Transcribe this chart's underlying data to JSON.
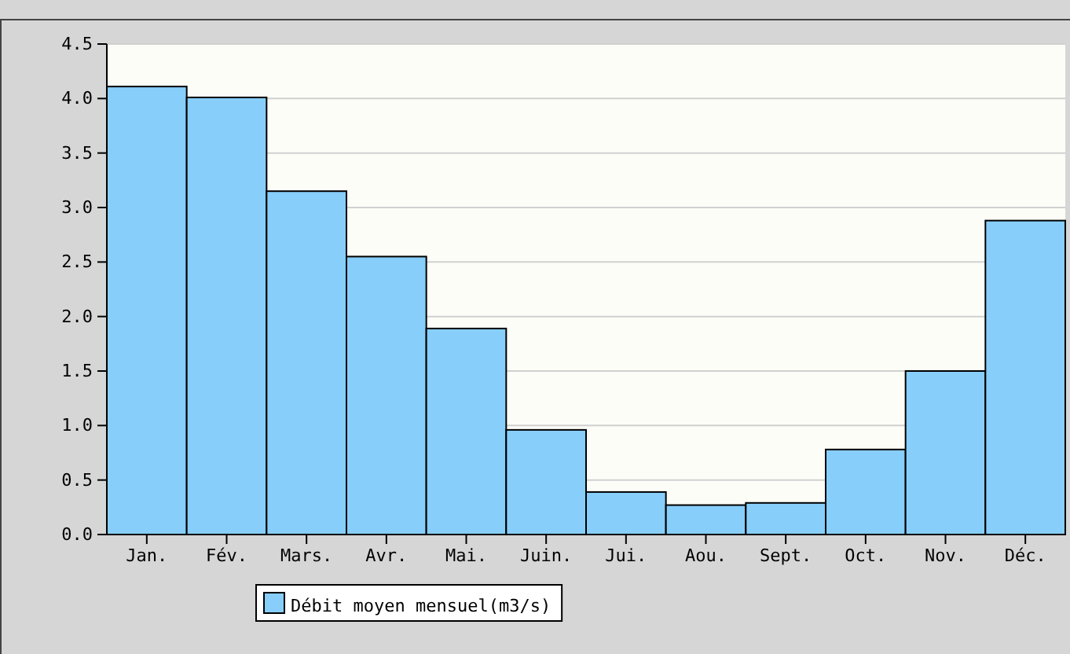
{
  "chart_data": {
    "type": "bar",
    "categories": [
      "Jan.",
      "Fév.",
      "Mars.",
      "Avr.",
      "Mai.",
      "Juin.",
      "Jui.",
      "Aou.",
      "Sept.",
      "Oct.",
      "Nov.",
      "Déc."
    ],
    "series": [
      {
        "name": "Débit moyen mensuel(m3/s)",
        "color": "#87cefa",
        "values": [
          4.11,
          4.01,
          3.15,
          2.55,
          1.89,
          0.96,
          0.39,
          0.27,
          0.29,
          0.78,
          1.5,
          2.88
        ]
      }
    ],
    "ylim": [
      0,
      4.5
    ],
    "yticks": [
      {
        "value": 0,
        "label": "0.0"
      },
      {
        "value": 0.5,
        "label": "0.5"
      },
      {
        "value": 1,
        "label": "1.0"
      },
      {
        "value": 1.5,
        "label": "1.5"
      },
      {
        "value": 2,
        "label": "2.0"
      },
      {
        "value": 2.5,
        "label": "2.5"
      },
      {
        "value": 3,
        "label": "3.0"
      },
      {
        "value": 3.5,
        "label": "3.5"
      },
      {
        "value": 4,
        "label": "4.0"
      },
      {
        "value": 4.5,
        "label": "4.5"
      }
    ],
    "grid": "y",
    "legend": "bottom left"
  }
}
